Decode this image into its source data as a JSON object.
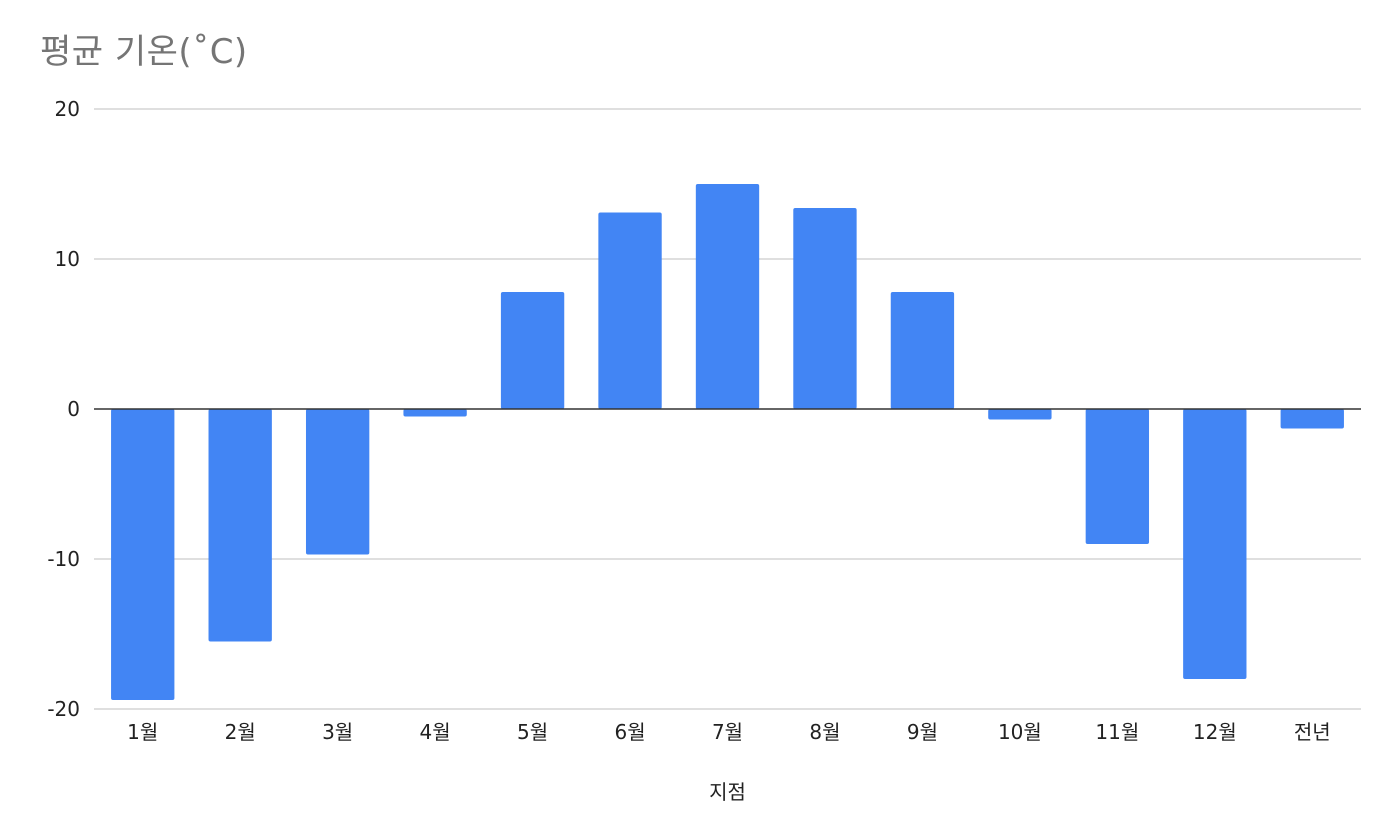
{
  "chart_data": {
    "type": "bar",
    "title": "평균 기온(˚C)",
    "xlabel": "지점",
    "ylabel": "",
    "ylim": [
      -20,
      20
    ],
    "yticks": [
      20,
      10,
      0,
      -10,
      -20
    ],
    "grid": true,
    "legend": "none",
    "bar_color": "#4285F4",
    "grid_color": "#cccccc",
    "zero_line_color": "#333333",
    "categories": [
      "1월",
      "2월",
      "3월",
      "4월",
      "5월",
      "6월",
      "7월",
      "8월",
      "9월",
      "10월",
      "11월",
      "12월",
      "전년"
    ],
    "values": [
      -19.4,
      -15.5,
      -9.7,
      -0.5,
      7.8,
      13.1,
      15.0,
      13.4,
      7.8,
      -0.7,
      -9.0,
      -18.0,
      -1.3
    ]
  }
}
